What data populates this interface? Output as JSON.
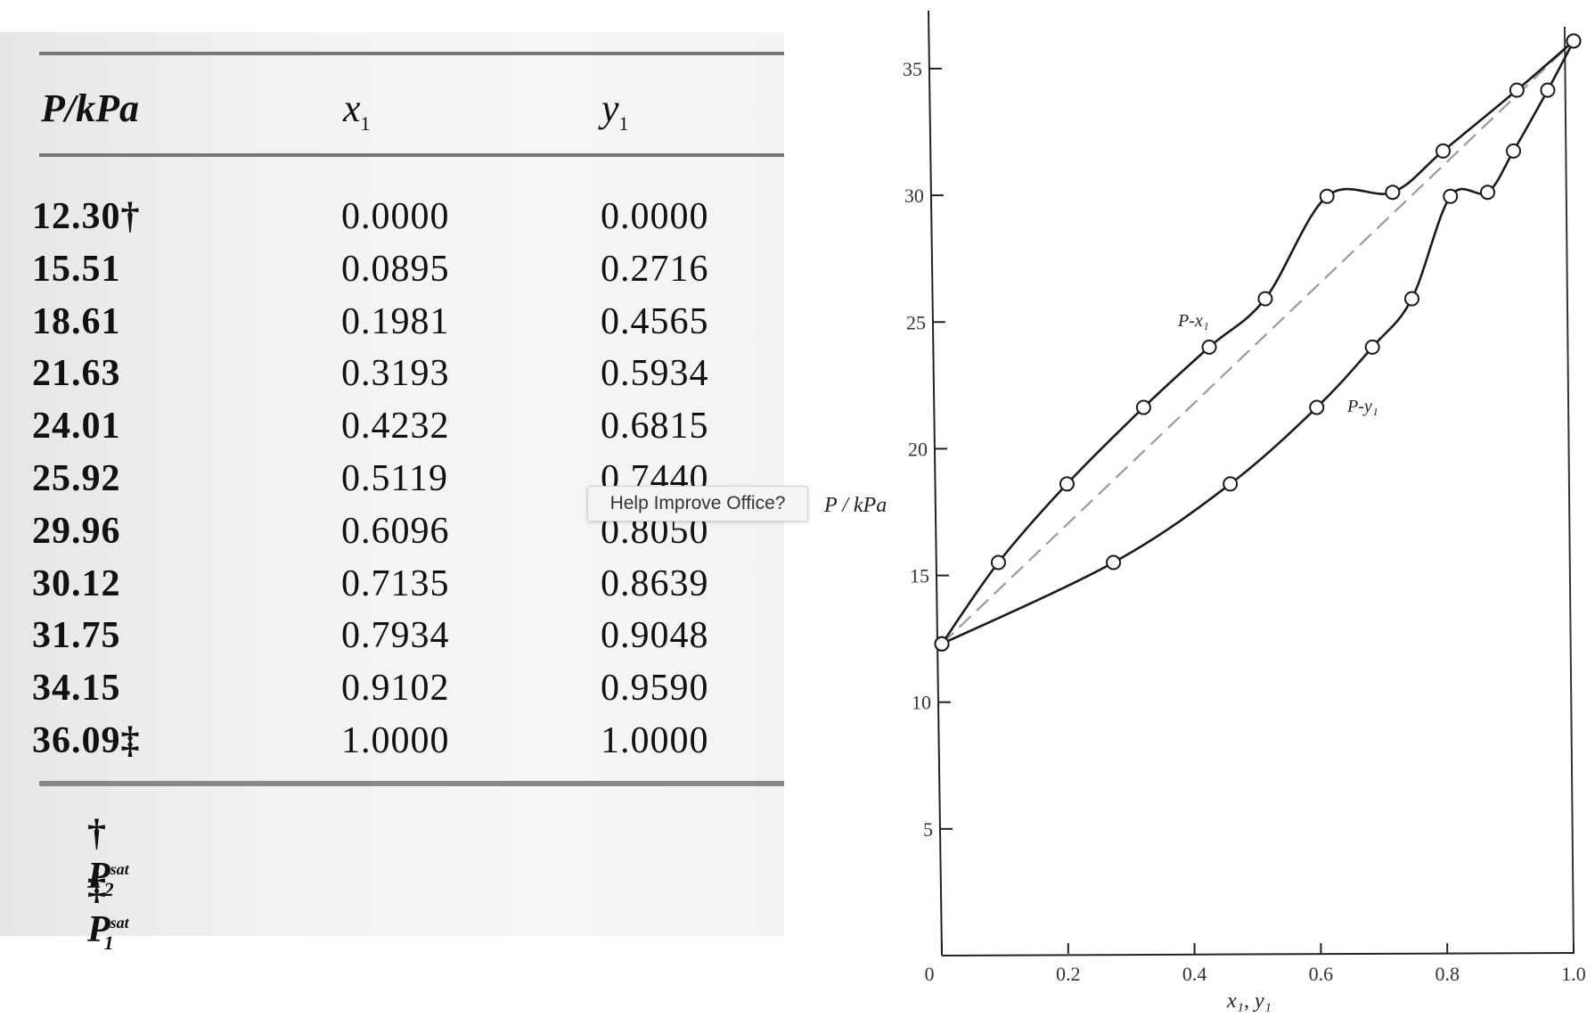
{
  "table": {
    "headers": {
      "p": "P/kPa",
      "x": "x",
      "x_sub": "1",
      "y": "y",
      "y_sub": "1"
    },
    "rows": [
      {
        "p": "12.30†",
        "x": "0.0000",
        "y": "0.0000"
      },
      {
        "p": "15.51",
        "x": "0.0895",
        "y": "0.2716"
      },
      {
        "p": "18.61",
        "x": "0.1981",
        "y": "0.4565"
      },
      {
        "p": "21.63",
        "x": "0.3193",
        "y": "0.5934"
      },
      {
        "p": "24.01",
        "x": "0.4232",
        "y": "0.6815"
      },
      {
        "p": "25.92",
        "x": "0.5119",
        "y": "0.7440"
      },
      {
        "p": "29.96",
        "x": "0.6096",
        "y": "0.8050"
      },
      {
        "p": "30.12",
        "x": "0.7135",
        "y": "0.8639"
      },
      {
        "p": "31.75",
        "x": "0.7934",
        "y": "0.9048"
      },
      {
        "p": "34.15",
        "x": "0.9102",
        "y": "0.9590"
      },
      {
        "p": "36.09‡",
        "x": "1.0000",
        "y": "1.0000"
      }
    ],
    "footnotes": [
      {
        "mark": "†",
        "symbol": "P",
        "sub": "2",
        "sup": "sat"
      },
      {
        "mark": "‡",
        "symbol": "P",
        "sub": "1",
        "sup": "sat"
      }
    ]
  },
  "tooltip": {
    "text": "Help Improve Office?"
  },
  "chart_data": {
    "type": "line",
    "xlabel": "x₁, y₁",
    "ylabel": "P / kPa",
    "xlim": [
      0,
      1.0
    ],
    "ylim": [
      0,
      37
    ],
    "x_ticks": [
      "0",
      "0.2",
      "0.4",
      "0.6",
      "0.8",
      "1.0"
    ],
    "y_ticks": [
      "5",
      "10",
      "15",
      "20",
      "25",
      "30",
      "35"
    ],
    "series": [
      {
        "name": "P-x₁",
        "x": [
          0.0,
          0.0895,
          0.1981,
          0.3193,
          0.4232,
          0.5119,
          0.6096,
          0.7135,
          0.7934,
          0.9102,
          1.0
        ],
        "y": [
          12.3,
          15.51,
          18.61,
          21.63,
          24.01,
          25.92,
          29.96,
          30.12,
          31.75,
          34.15,
          36.09
        ]
      },
      {
        "name": "P-y₁",
        "x": [
          0.0,
          0.2716,
          0.4565,
          0.5934,
          0.6815,
          0.744,
          0.805,
          0.8639,
          0.9048,
          0.959,
          1.0
        ],
        "y": [
          12.3,
          15.51,
          18.61,
          21.63,
          24.01,
          25.92,
          29.96,
          30.12,
          31.75,
          34.15,
          36.09
        ]
      }
    ],
    "reference_line": {
      "style": "dashed",
      "x": [
        0.0,
        1.0
      ],
      "y": [
        12.3,
        36.09
      ]
    }
  }
}
